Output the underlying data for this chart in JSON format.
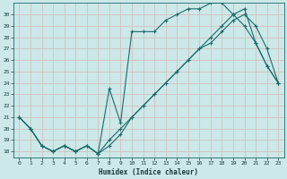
{
  "title": "",
  "xlabel": "Humidex (Indice chaleur)",
  "bg_color": "#cce8e8",
  "grid_color": "#b8d4d4",
  "line_color": "#1a6b6b",
  "xlim": [
    -0.5,
    23.5
  ],
  "ylim": [
    17.5,
    31.0
  ],
  "xticks": [
    0,
    1,
    2,
    3,
    4,
    5,
    6,
    7,
    8,
    9,
    10,
    11,
    12,
    13,
    14,
    15,
    16,
    17,
    18,
    19,
    20,
    21,
    22,
    23
  ],
  "yticks": [
    18,
    19,
    20,
    21,
    22,
    23,
    24,
    25,
    26,
    27,
    28,
    29,
    30
  ],
  "line1_x": [
    0,
    1,
    2,
    3,
    4,
    5,
    6,
    7,
    8,
    9,
    10,
    11,
    12,
    13,
    14,
    15,
    16,
    17,
    18,
    19,
    20,
    21,
    22,
    23
  ],
  "line1_y": [
    21.0,
    20.0,
    18.5,
    18.0,
    18.5,
    18.0,
    18.5,
    17.8,
    23.5,
    20.5,
    28.5,
    28.5,
    28.5,
    29.5,
    30.0,
    30.5,
    30.5,
    31.0,
    31.0,
    30.0,
    29.0,
    27.5,
    25.5,
    24.0
  ],
  "line2_x": [
    0,
    1,
    2,
    3,
    4,
    5,
    6,
    7,
    8,
    9,
    10,
    11,
    12,
    13,
    14,
    15,
    16,
    17,
    18,
    19,
    20,
    21,
    22,
    23
  ],
  "line2_y": [
    21.0,
    20.0,
    18.5,
    18.0,
    18.5,
    18.0,
    18.5,
    17.8,
    19.0,
    20.0,
    21.0,
    22.0,
    23.0,
    24.0,
    25.0,
    26.0,
    27.0,
    27.5,
    28.5,
    29.5,
    30.0,
    29.0,
    27.0,
    24.0
  ],
  "line3_x": [
    0,
    1,
    2,
    3,
    4,
    5,
    6,
    7,
    8,
    9,
    10,
    11,
    12,
    13,
    14,
    15,
    16,
    17,
    18,
    19,
    20,
    21,
    22,
    23
  ],
  "line3_y": [
    21.0,
    20.0,
    18.5,
    18.0,
    18.5,
    18.0,
    18.5,
    17.8,
    18.5,
    19.5,
    21.0,
    22.0,
    23.0,
    24.0,
    25.0,
    26.0,
    27.0,
    28.0,
    29.0,
    30.0,
    30.5,
    27.5,
    25.5,
    24.0
  ]
}
